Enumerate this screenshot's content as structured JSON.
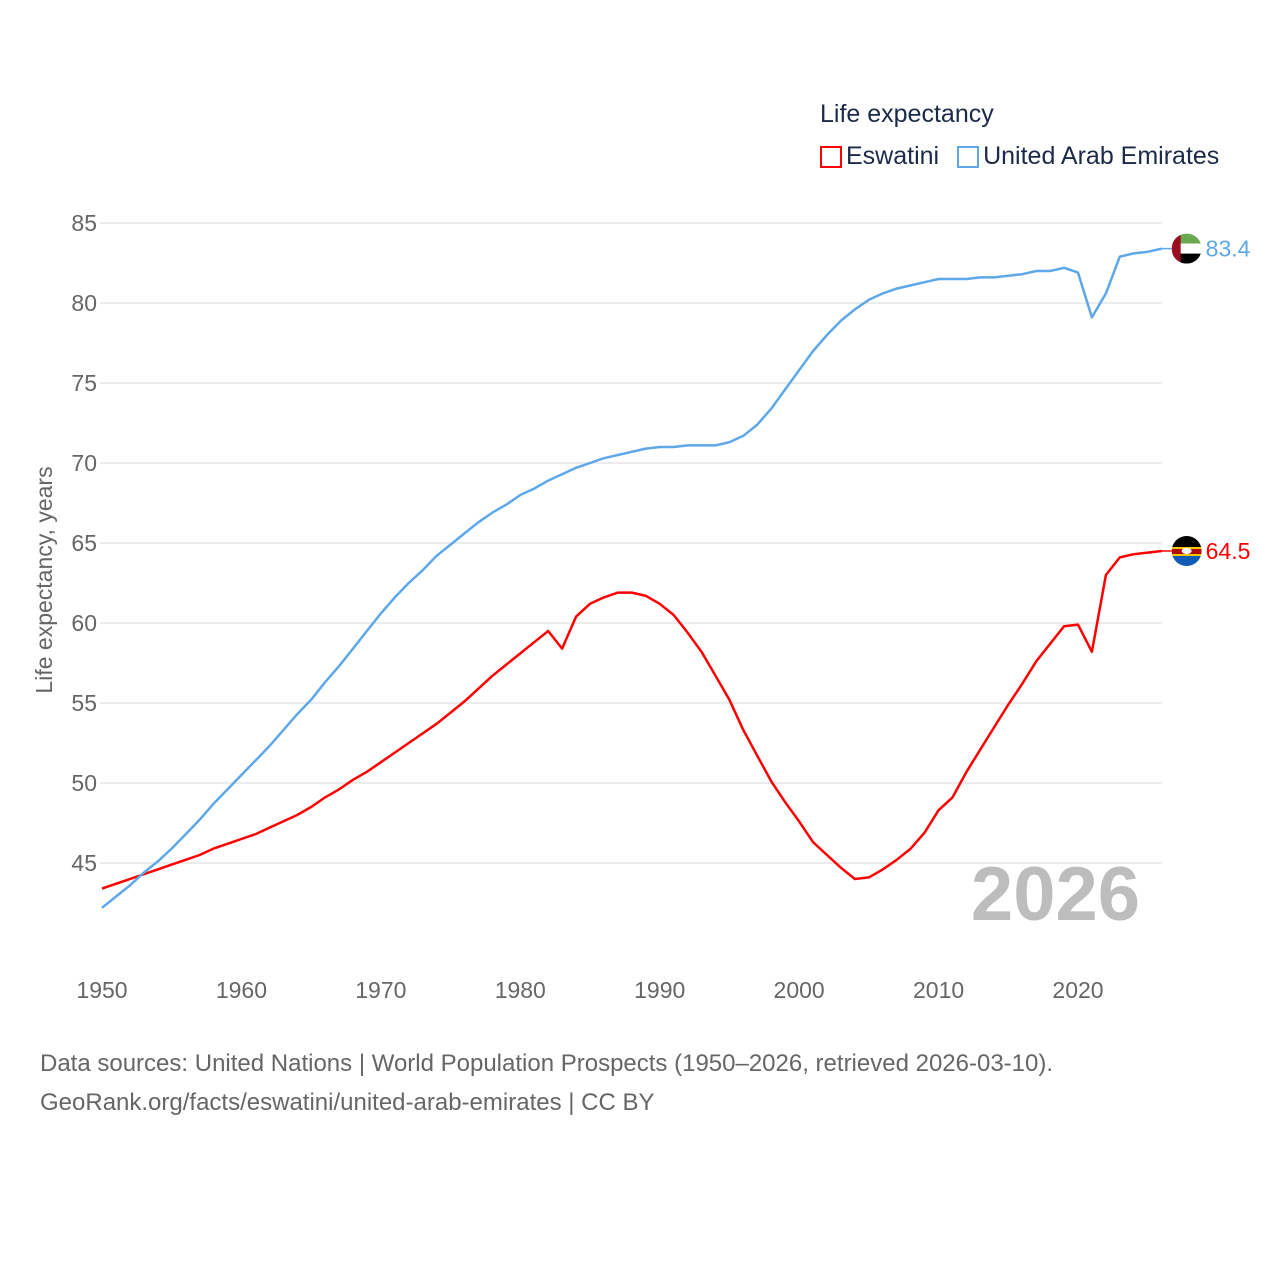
{
  "legend": {
    "title": "Life expectancy",
    "items": [
      {
        "label": "Eswatini",
        "color": "#ff0000"
      },
      {
        "label": "United Arab Emirates",
        "color": "#5ea8ea"
      }
    ]
  },
  "footer": {
    "line1": "Data sources: United Nations | World Population Prospects (1950–2026, retrieved 2026-03-10).",
    "line2": "GeoRank.org/facts/eswatini/united-arab-emirates | CC BY"
  },
  "chart_data": {
    "type": "line",
    "title": "Life expectancy",
    "xlabel": "",
    "ylabel": "Life expectancy, years",
    "xlim": [
      1950,
      2026
    ],
    "ylim": [
      41,
      86
    ],
    "grid": true,
    "legend_position": "top-right",
    "year_watermark": "2026",
    "x_ticks": [
      "1950",
      "1960",
      "1970",
      "1980",
      "1990",
      "2000",
      "2010",
      "2020"
    ],
    "y_ticks": [
      "45",
      "50",
      "55",
      "60",
      "65",
      "70",
      "75",
      "80",
      "85"
    ],
    "x_start": 1950,
    "series": [
      {
        "name": "Eswatini",
        "color": "#ff0000",
        "end_label": "64.5",
        "flag": "eswatini-flag",
        "values": [
          43.4,
          43.7,
          44.0,
          44.3,
          44.6,
          44.9,
          45.2,
          45.5,
          45.9,
          46.2,
          46.5,
          46.8,
          47.2,
          47.6,
          48.0,
          48.5,
          49.1,
          49.6,
          50.2,
          50.7,
          51.3,
          51.9,
          52.5,
          53.1,
          53.7,
          54.4,
          55.1,
          55.9,
          56.7,
          57.4,
          58.1,
          58.8,
          59.5,
          58.4,
          60.4,
          61.2,
          61.6,
          61.9,
          61.9,
          61.7,
          61.2,
          60.5,
          59.4,
          58.2,
          56.7,
          55.2,
          53.3,
          51.7,
          50.1,
          48.8,
          47.6,
          46.3,
          45.5,
          44.7,
          44.0,
          44.1,
          44.6,
          45.2,
          45.9,
          46.9,
          48.3,
          49.1,
          50.7,
          52.1,
          53.5,
          54.9,
          56.2,
          57.6,
          58.7,
          59.8,
          59.9,
          58.2,
          63.0,
          64.1,
          64.3,
          64.4,
          64.5
        ]
      },
      {
        "name": "United Arab Emirates",
        "color": "#5ea8ea",
        "end_label": "83.4",
        "flag": "uae-flag",
        "values": [
          42.2,
          42.9,
          43.6,
          44.4,
          45.1,
          45.9,
          46.8,
          47.7,
          48.7,
          49.6,
          50.5,
          51.4,
          52.3,
          53.3,
          54.3,
          55.2,
          56.3,
          57.3,
          58.4,
          59.5,
          60.6,
          61.6,
          62.5,
          63.3,
          64.2,
          64.9,
          65.6,
          66.3,
          66.9,
          67.4,
          68.0,
          68.4,
          68.9,
          69.3,
          69.7,
          70.0,
          70.3,
          70.5,
          70.7,
          70.9,
          71.0,
          71.0,
          71.1,
          71.1,
          71.1,
          71.3,
          71.7,
          72.4,
          73.4,
          74.6,
          75.8,
          77.0,
          78.0,
          78.9,
          79.6,
          80.2,
          80.6,
          80.9,
          81.1,
          81.3,
          81.5,
          81.5,
          81.5,
          81.6,
          81.6,
          81.7,
          81.8,
          82.0,
          82.0,
          82.2,
          81.9,
          79.1,
          80.6,
          82.9,
          83.1,
          83.2,
          83.4
        ]
      }
    ]
  }
}
